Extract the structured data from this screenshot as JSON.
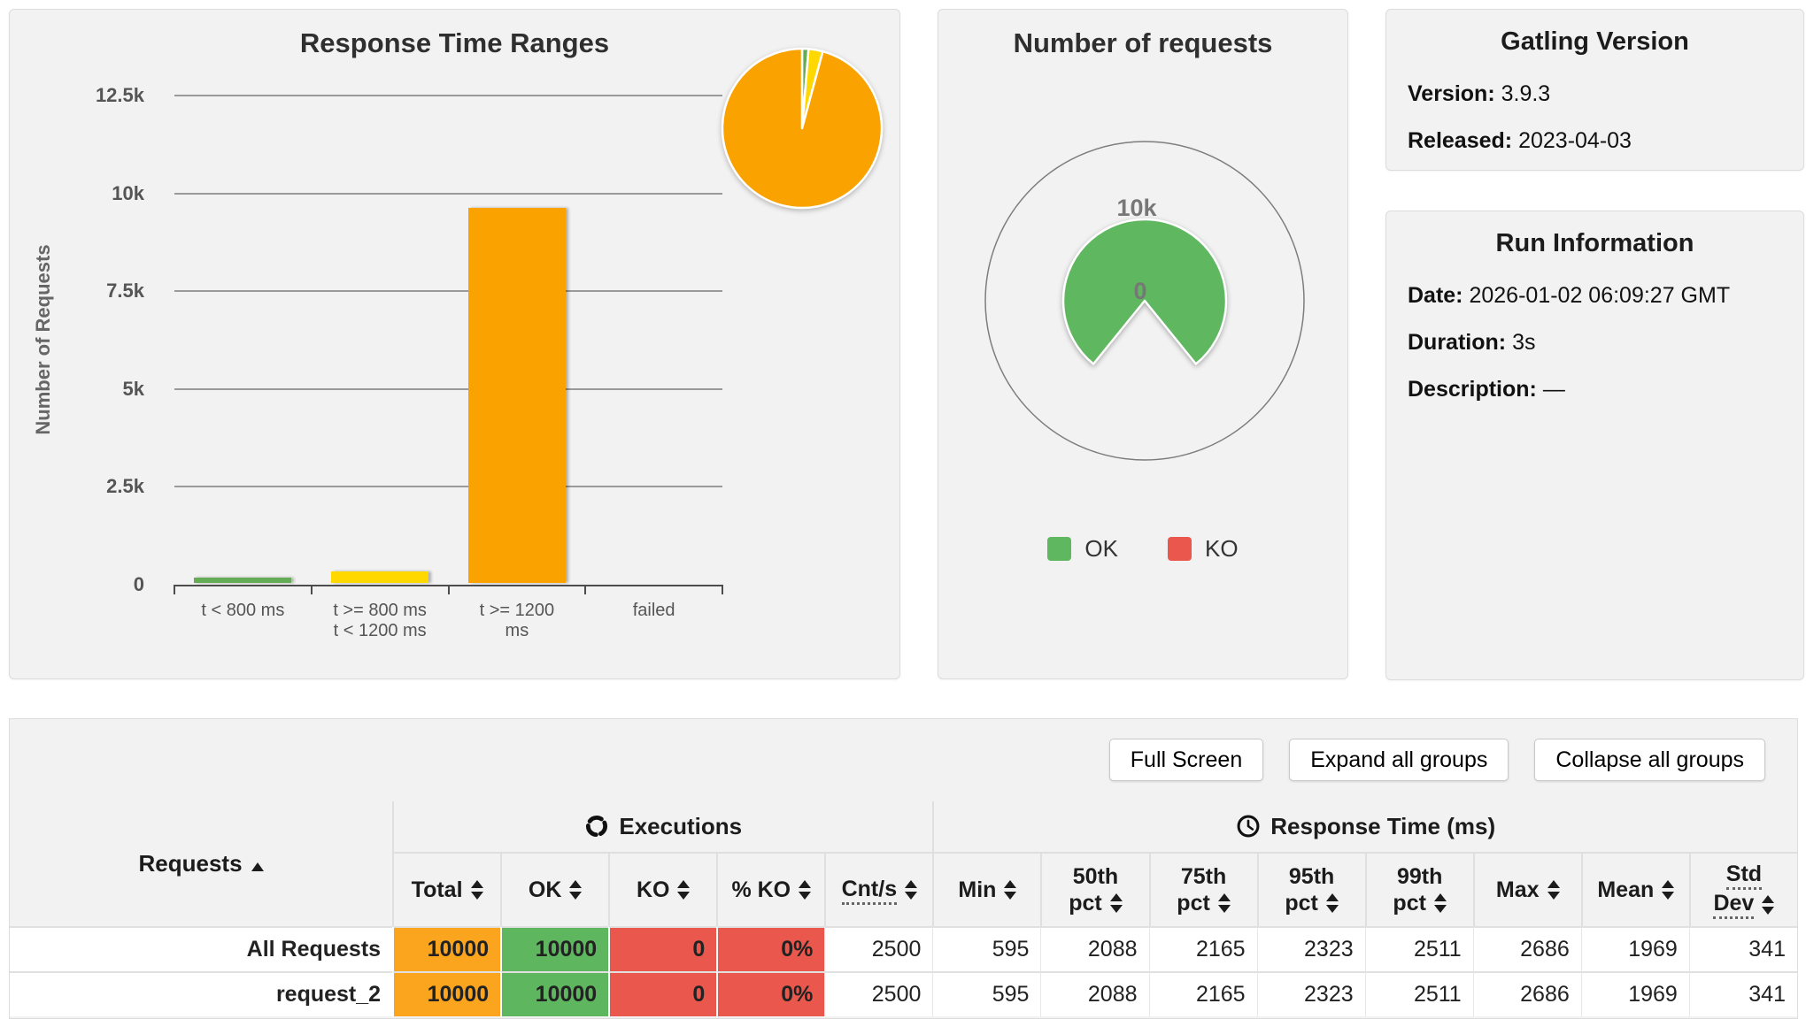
{
  "colors": {
    "panel_bg": "#f2f2f2",
    "bar_green": "#66ab55",
    "bar_yellow": "#ffd800",
    "bar_orange": "#f9a200",
    "ok_green": "#5fb75f",
    "ko_red": "#e9574d",
    "table_cell_orange": "#fba41e",
    "table_cell_green": "#5eb65e",
    "table_cell_red": "#e9574d"
  },
  "chart_data": [
    {
      "type": "bar",
      "title": "Response Time Ranges",
      "ylabel": "Number of Requests",
      "xlabel": "",
      "categories": [
        "t < 800 ms",
        "t >= 800 ms t < 1200 ms",
        "t >= 1200 ms",
        "failed"
      ],
      "category_lines": [
        [
          "t < 800 ms"
        ],
        [
          "t >= 800 ms",
          "t < 1200 ms"
        ],
        [
          "t >= 1200",
          "ms"
        ],
        [
          "failed"
        ]
      ],
      "values": [
        130,
        290,
        9580,
        0
      ],
      "bar_colors": [
        "#66ab55",
        "#ffd800",
        "#f9a200",
        "#e9574d"
      ],
      "ylim": [
        0,
        12500
      ],
      "y_ticks": [
        0,
        2500,
        5000,
        7500,
        10000,
        12500
      ],
      "y_tick_labels": [
        "0",
        "2.5k",
        "5k",
        "7.5k",
        "10k",
        "12.5k"
      ],
      "grid": true,
      "inset_pie": {
        "type": "pie",
        "labels": [
          "t < 800 ms",
          "t >= 800 ms t < 1200 ms",
          "t >= 1200 ms"
        ],
        "values": [
          130,
          290,
          9580
        ],
        "colors": [
          "#66ab55",
          "#ffd800",
          "#f9a200"
        ]
      }
    },
    {
      "type": "pie",
      "title": "Number of requests",
      "series": [
        {
          "name": "OK",
          "value": 10000,
          "label": "10k",
          "color": "#5fb75f"
        },
        {
          "name": "KO",
          "value": 0,
          "label": "0",
          "color": "#e9574d"
        }
      ],
      "top_label": "10k",
      "center_label": "0",
      "legend_position": "bottom"
    }
  ],
  "panels": {
    "gatling_version": {
      "title": "Gatling Version",
      "version_label": "Version:",
      "version_value": "3.9.3",
      "released_label": "Released:",
      "released_value": "2023-04-03"
    },
    "run_information": {
      "title": "Run Information",
      "date_label": "Date:",
      "date_value": "2026-01-02 06:09:27 GMT",
      "duration_label": "Duration:",
      "duration_value": "3s",
      "description_label": "Description:",
      "description_value": "—"
    }
  },
  "toolbar": {
    "full_screen_label": "Full Screen",
    "expand_all_label": "Expand all groups",
    "collapse_all_label": "Collapse all groups"
  },
  "stats_table": {
    "col_requests": "Requests",
    "group_executions": "Executions",
    "group_response_time": "Response Time (ms)",
    "subheaders": [
      {
        "key": "total",
        "lines": [
          "Total"
        ]
      },
      {
        "key": "ok",
        "lines": [
          "OK"
        ]
      },
      {
        "key": "ko",
        "lines": [
          "KO"
        ]
      },
      {
        "key": "ko_pct",
        "lines": [
          "% KO"
        ]
      },
      {
        "key": "cnts",
        "lines": [
          "Cnt/s"
        ],
        "dotted": true
      },
      {
        "key": "min",
        "lines": [
          "Min"
        ]
      },
      {
        "key": "p50",
        "lines": [
          "50th",
          "pct"
        ]
      },
      {
        "key": "p75",
        "lines": [
          "75th",
          "pct"
        ]
      },
      {
        "key": "p95",
        "lines": [
          "95th",
          "pct"
        ]
      },
      {
        "key": "p99",
        "lines": [
          "99th",
          "pct"
        ]
      },
      {
        "key": "max",
        "lines": [
          "Max"
        ]
      },
      {
        "key": "mean",
        "lines": [
          "Mean"
        ]
      },
      {
        "key": "stddev",
        "lines": [
          "Std",
          "Dev"
        ],
        "dotted": true
      }
    ],
    "rows": [
      {
        "name": "All Requests",
        "total": "10000",
        "ok": "10000",
        "ko": "0",
        "ko_pct": "0%",
        "cnts": "2500",
        "min": "595",
        "p50": "2088",
        "p75": "2165",
        "p95": "2323",
        "p99": "2511",
        "max": "2686",
        "mean": "1969",
        "stddev": "341"
      },
      {
        "name": "request_2",
        "total": "10000",
        "ok": "10000",
        "ko": "0",
        "ko_pct": "0%",
        "cnts": "2500",
        "min": "595",
        "p50": "2088",
        "p75": "2165",
        "p95": "2323",
        "p99": "2511",
        "max": "2686",
        "mean": "1969",
        "stddev": "341"
      }
    ]
  }
}
